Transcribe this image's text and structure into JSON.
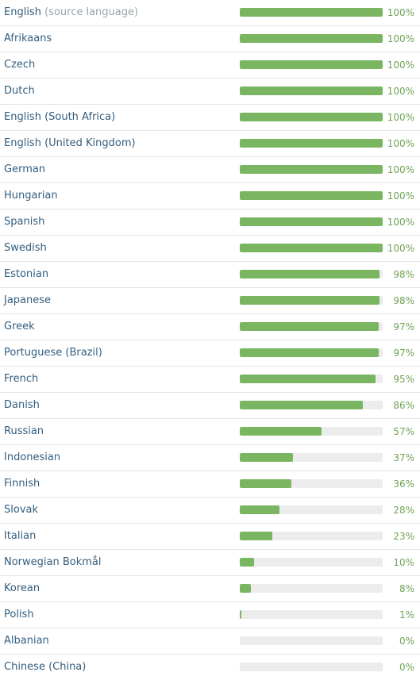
{
  "languages": [
    {
      "name": "English",
      "note": "(source language)",
      "percent_label": "100%",
      "fraction": 1.0
    },
    {
      "name": "Afrikaans",
      "note": "",
      "percent_label": "100%",
      "fraction": 1.0
    },
    {
      "name": "Czech",
      "note": "",
      "percent_label": "100%",
      "fraction": 1.0
    },
    {
      "name": "Dutch",
      "note": "",
      "percent_label": "100%",
      "fraction": 1.0
    },
    {
      "name": "English (South Africa)",
      "note": "",
      "percent_label": "100%",
      "fraction": 1.0
    },
    {
      "name": "English (United Kingdom)",
      "note": "",
      "percent_label": "100%",
      "fraction": 1.0
    },
    {
      "name": "German",
      "note": "",
      "percent_label": "100%",
      "fraction": 1.0
    },
    {
      "name": "Hungarian",
      "note": "",
      "percent_label": "100%",
      "fraction": 1.0
    },
    {
      "name": "Spanish",
      "note": "",
      "percent_label": "100%",
      "fraction": 1.0
    },
    {
      "name": "Swedish",
      "note": "",
      "percent_label": "100%",
      "fraction": 1.0
    },
    {
      "name": "Estonian",
      "note": "",
      "percent_label": "98%",
      "fraction": 0.98
    },
    {
      "name": "Japanese",
      "note": "",
      "percent_label": "98%",
      "fraction": 0.98
    },
    {
      "name": "Greek",
      "note": "",
      "percent_label": "97%",
      "fraction": 0.97
    },
    {
      "name": "Portuguese (Brazil)",
      "note": "",
      "percent_label": "97%",
      "fraction": 0.97
    },
    {
      "name": "French",
      "note": "",
      "percent_label": "95%",
      "fraction": 0.95
    },
    {
      "name": "Danish",
      "note": "",
      "percent_label": "86%",
      "fraction": 0.86
    },
    {
      "name": "Russian",
      "note": "",
      "percent_label": "57%",
      "fraction": 0.57
    },
    {
      "name": "Indonesian",
      "note": "",
      "percent_label": "37%",
      "fraction": 0.37
    },
    {
      "name": "Finnish",
      "note": "",
      "percent_label": "36%",
      "fraction": 0.36
    },
    {
      "name": "Slovak",
      "note": "",
      "percent_label": "28%",
      "fraction": 0.28
    },
    {
      "name": "Italian",
      "note": "",
      "percent_label": "23%",
      "fraction": 0.23
    },
    {
      "name": "Norwegian Bokmål",
      "note": "",
      "percent_label": "10%",
      "fraction": 0.1
    },
    {
      "name": "Korean",
      "note": "",
      "percent_label": "8%",
      "fraction": 0.08
    },
    {
      "name": "Polish",
      "note": "",
      "percent_label": "1%",
      "fraction": 0.01
    },
    {
      "name": "Albanian",
      "note": "",
      "percent_label": "0%",
      "fraction": 0.0
    },
    {
      "name": "Chinese (China)",
      "note": "",
      "percent_label": "0%",
      "fraction": 0.0
    }
  ],
  "colors": {
    "language_link": "#335d7e",
    "source_note": "#9aa3ab",
    "bar_fill": "#7ab661",
    "bar_track": "#ececec",
    "percent_text": "#6ea356",
    "row_divider": "#e4e4e4"
  }
}
